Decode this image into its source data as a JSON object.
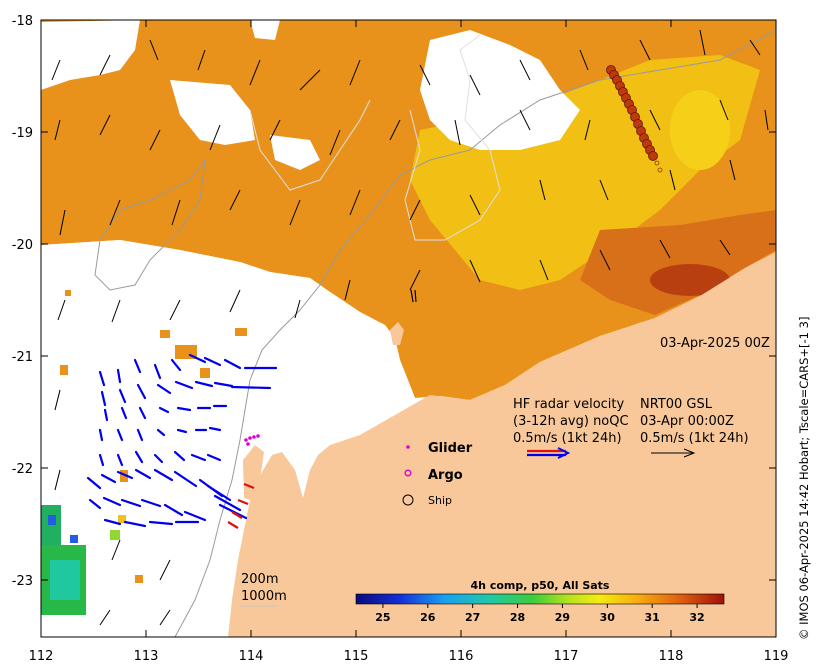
{
  "map": {
    "x_ticks": [
      "112",
      "113",
      "114",
      "115",
      "116",
      "117",
      "118",
      "119"
    ],
    "y_ticks": [
      "-18",
      "-19",
      "-20",
      "-21",
      "-22",
      "-23"
    ],
    "date_label": "03-Apr-2025 00Z",
    "depth_labels": {
      "shallow": "200m",
      "deep": "1000m"
    }
  },
  "legend": {
    "radar_line1": "HF radar velocity",
    "radar_line2": "(3-12h avg) noQC",
    "radar_line3": "0.5m/s (1kt 24h)",
    "model_line1": "NRT00 GSL",
    "model_line2": "03-Apr 00:00Z",
    "model_line3": "0.5m/s (1kt 24h)",
    "glider": "Glider",
    "argo": "Argo",
    "ship": "Ship"
  },
  "colorbar": {
    "title": "4h comp, p50, All Sats",
    "ticks": [
      "25",
      "26",
      "27",
      "28",
      "29",
      "30",
      "31",
      "32"
    ],
    "range": [
      24.4,
      32.6
    ]
  },
  "footer": {
    "credit": "© IMOS 06-Apr-2025 14:42 Hobart; Tscale=CARS+[-1 3]"
  },
  "colors": {
    "land": "#f8c89a",
    "radar_arrows": "#0000ee",
    "coast": "#8a8a8a",
    "ship_fill": "#c0390e"
  }
}
